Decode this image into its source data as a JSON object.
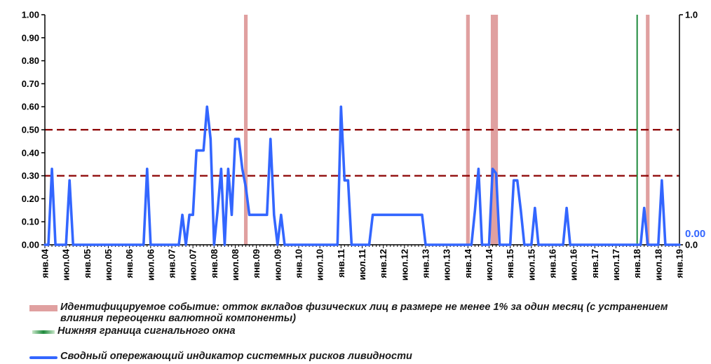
{
  "chart_data": {
    "type": "line",
    "y_left": {
      "ylim": [
        0,
        1
      ],
      "ticks": [
        "0.00",
        "0.10",
        "0.20",
        "0.30",
        "0.40",
        "0.50",
        "0.60",
        "0.70",
        "0.80",
        "0.90",
        "1.00"
      ]
    },
    "y_right": {
      "ticks": [
        "0.0",
        "1.0"
      ],
      "end_label": "0.00"
    },
    "x_labels": [
      "янв.04",
      "июл.04",
      "янв.05",
      "июл.05",
      "янв.06",
      "июл.06",
      "янв.07",
      "июл.07",
      "янв.08",
      "июл.08",
      "янв.09",
      "июл.09",
      "янв.10",
      "июл.10",
      "янв.11",
      "июл.11",
      "янв.12",
      "июл.12",
      "янв.13",
      "июл.13",
      "янв.14",
      "июл.14",
      "янв.15",
      "июл.15",
      "янв.16",
      "июл.16",
      "янв.17",
      "июл.17",
      "янв.18",
      "июл.18",
      "янв.19"
    ],
    "thresholds": [
      0.3,
      0.5
    ],
    "colors": {
      "indicator": "#3366ff",
      "event": "#e0a0a0",
      "window": "#1e8a3c",
      "threshold": "#8b0000"
    },
    "event_months": [
      "2008-10",
      "2014-01",
      "2014-08",
      "2014-09",
      "2018-04"
    ],
    "window_months": [
      "2018-01"
    ],
    "series": [
      {
        "name": "Сводный опережающий индикатор системных рисков ливидности",
        "points": [
          [
            "2004-01",
            0
          ],
          [
            "2004-02",
            0
          ],
          [
            "2004-03",
            0.33
          ],
          [
            "2004-04",
            0
          ],
          [
            "2004-05",
            0
          ],
          [
            "2004-06",
            0
          ],
          [
            "2004-07",
            0
          ],
          [
            "2004-08",
            0.28
          ],
          [
            "2004-09",
            0
          ],
          [
            "2006-05",
            0
          ],
          [
            "2006-06",
            0.33
          ],
          [
            "2006-07",
            0
          ],
          [
            "2007-03",
            0
          ],
          [
            "2007-04",
            0.13
          ],
          [
            "2007-05",
            0
          ],
          [
            "2007-06",
            0.13
          ],
          [
            "2007-07",
            0.13
          ],
          [
            "2007-08",
            0.41
          ],
          [
            "2007-09",
            0.41
          ],
          [
            "2007-10",
            0.41
          ],
          [
            "2007-11",
            0.6
          ],
          [
            "2007-12",
            0.46
          ],
          [
            "2008-01",
            0
          ],
          [
            "2008-02",
            0.15
          ],
          [
            "2008-03",
            0.33
          ],
          [
            "2008-04",
            0
          ],
          [
            "2008-05",
            0.33
          ],
          [
            "2008-06",
            0.13
          ],
          [
            "2008-07",
            0.46
          ],
          [
            "2008-08",
            0.46
          ],
          [
            "2008-09",
            0.33
          ],
          [
            "2008-10",
            0.25
          ],
          [
            "2008-11",
            0.13
          ],
          [
            "2008-12",
            0.13
          ],
          [
            "2009-01",
            0.13
          ],
          [
            "2009-02",
            0.13
          ],
          [
            "2009-03",
            0.13
          ],
          [
            "2009-04",
            0.13
          ],
          [
            "2009-05",
            0.46
          ],
          [
            "2009-06",
            0.13
          ],
          [
            "2009-07",
            0
          ],
          [
            "2009-08",
            0.13
          ],
          [
            "2009-09",
            0
          ],
          [
            "2010-12",
            0
          ],
          [
            "2011-01",
            0.6
          ],
          [
            "2011-02",
            0.28
          ],
          [
            "2011-03",
            0.28
          ],
          [
            "2011-04",
            0
          ],
          [
            "2011-05",
            0
          ],
          [
            "2011-06",
            0
          ],
          [
            "2011-07",
            0
          ],
          [
            "2011-08",
            0
          ],
          [
            "2011-09",
            0
          ],
          [
            "2011-10",
            0.13
          ],
          [
            "2011-11",
            0.13
          ],
          [
            "2012-12",
            0.13
          ],
          [
            "2013-01",
            0
          ],
          [
            "2013-02",
            0
          ],
          [
            "2013-12",
            0
          ],
          [
            "2014-01",
            0
          ],
          [
            "2014-02",
            0
          ],
          [
            "2014-03",
            0.15
          ],
          [
            "2014-04",
            0.33
          ],
          [
            "2014-05",
            0
          ],
          [
            "2014-06",
            0
          ],
          [
            "2014-07",
            0
          ],
          [
            "2014-08",
            0.33
          ],
          [
            "2014-09",
            0.31
          ],
          [
            "2014-10",
            0
          ],
          [
            "2014-11",
            0
          ],
          [
            "2014-12",
            0
          ],
          [
            "2015-01",
            0
          ],
          [
            "2015-02",
            0.28
          ],
          [
            "2015-03",
            0.28
          ],
          [
            "2015-04",
            0.15
          ],
          [
            "2015-05",
            0
          ],
          [
            "2015-06",
            0
          ],
          [
            "2015-07",
            0
          ],
          [
            "2015-08",
            0.16
          ],
          [
            "2015-09",
            0
          ],
          [
            "2016-04",
            0
          ],
          [
            "2016-05",
            0.16
          ],
          [
            "2016-06",
            0
          ],
          [
            "2018-02",
            0
          ],
          [
            "2018-03",
            0.16
          ],
          [
            "2018-04",
            0
          ],
          [
            "2018-05",
            0
          ],
          [
            "2018-06",
            0
          ],
          [
            "2018-07",
            0
          ],
          [
            "2018-08",
            0.28
          ],
          [
            "2018-09",
            0
          ]
        ]
      }
    ]
  },
  "legend": {
    "event": "Идентифицируемое событие: отток вкладов физических лиц в размере не менее 1% за один месяц (с устранением влияния переоценки валютной компоненты)",
    "window": "Нижняя граница сигнального окна",
    "indicator": "Сводный опережающий индикатор системных рисков ливидности"
  }
}
